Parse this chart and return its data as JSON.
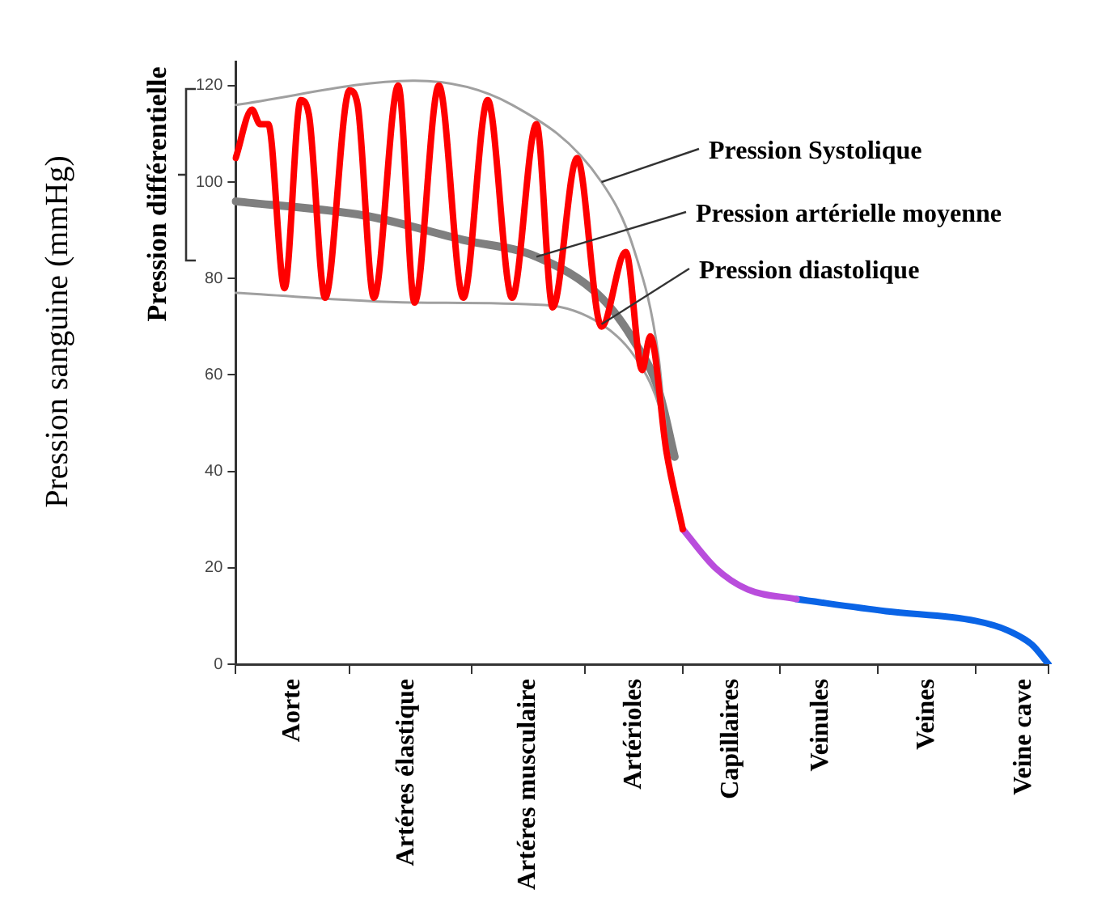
{
  "chart_data": {
    "type": "line",
    "ylabel": "Pression sanguine (mmHg)",
    "annotations": [
      "Pression différentielle"
    ],
    "categories": [
      null,
      null,
      null,
      null,
      null,
      null,
      null,
      "Aorte",
      null,
      null,
      null,
      null,
      null,
      null,
      null,
      null,
      null,
      null,
      null,
      null,
      null,
      "Artéres élastique",
      null,
      null,
      null,
      null,
      null,
      null,
      null,
      null,
      null,
      null,
      null,
      null,
      null,
      null,
      "Artéres musculaire",
      null,
      null,
      null,
      null,
      null,
      null,
      null,
      null,
      null,
      null,
      null,
      null,
      "Artérioles",
      null,
      null,
      null,
      null,
      null,
      null,
      null,
      null,
      null,
      null,
      null,
      "Capillaires",
      null,
      null,
      null,
      null,
      null,
      null,
      null,
      null,
      null,
      null,
      "Veinules",
      null,
      null,
      null,
      null,
      null,
      null,
      null,
      null,
      null,
      null,
      null,
      null,
      "Veines",
      null,
      null,
      null,
      null,
      null,
      null,
      null,
      null,
      null,
      null,
      null,
      "Veine cave",
      null,
      null,
      null
    ],
    "ylim": [
      0,
      125
    ],
    "yticks": [
      0,
      20,
      40,
      60,
      80,
      100,
      120
    ],
    "legend": false,
    "marker": "none",
    "series": [
      {
        "name": "Pression Systolique",
        "color": "#a0a0a0",
        "values": [
          116,
          null,
          null,
          null,
          null,
          null,
          null,
          null,
          null,
          null,
          null,
          null,
          null,
          null,
          null,
          null,
          null,
          null,
          null,
          null,
          null,
          null,
          121,
          null,
          null,
          null,
          null,
          null,
          null,
          null,
          null,
          null,
          null,
          null,
          116,
          null,
          null,
          null,
          null,
          null,
          null,
          null,
          null,
          null,
          null,
          100,
          null,
          null,
          null,
          86,
          null,
          null,
          64,
          47,
          null,
          null,
          null,
          null,
          null,
          null,
          null,
          null,
          null,
          null,
          null,
          null,
          null,
          null,
          null,
          null,
          null,
          null,
          null,
          null,
          null,
          null,
          null,
          null,
          null,
          null,
          null,
          null,
          null,
          null,
          null,
          null,
          null,
          null,
          null,
          null,
          null,
          null,
          null,
          null,
          null,
          null,
          null,
          null,
          null,
          null,
          null
        ]
      },
      {
        "name": "Pression artérielle moyenne",
        "color": "#7f7f7f",
        "values": [
          96,
          null,
          null,
          null,
          null,
          null,
          null,
          null,
          null,
          null,
          null,
          null,
          null,
          null,
          null,
          null,
          93,
          null,
          null,
          null,
          null,
          null,
          null,
          null,
          null,
          null,
          null,
          null,
          88,
          null,
          null,
          null,
          null,
          null,
          null,
          null,
          null,
          84.5,
          null,
          null,
          null,
          null,
          null,
          null,
          null,
          76,
          null,
          null,
          null,
          67,
          null,
          null,
          57,
          null,
          43,
          null,
          null,
          null,
          null,
          null,
          null,
          null,
          null,
          null,
          null,
          null,
          null,
          null,
          null,
          null,
          null,
          null,
          null,
          null,
          null,
          null,
          null,
          null,
          null,
          null,
          null,
          null,
          null,
          null,
          null,
          null,
          null,
          null,
          null,
          null,
          null,
          null,
          null,
          null,
          null,
          null,
          null,
          null,
          null,
          null,
          null
        ]
      },
      {
        "name": "Pression diastolique",
        "color": "#a0a0a0",
        "values": [
          77,
          null,
          null,
          null,
          null,
          null,
          null,
          null,
          null,
          null,
          null,
          null,
          null,
          null,
          null,
          null,
          null,
          null,
          null,
          null,
          null,
          null,
          75,
          null,
          null,
          null,
          null,
          null,
          null,
          null,
          null,
          null,
          null,
          null,
          null,
          null,
          null,
          null,
          74.5,
          null,
          null,
          null,
          null,
          null,
          null,
          70.5,
          null,
          null,
          null,
          64,
          null,
          null,
          54,
          47,
          null,
          null,
          null,
          null,
          null,
          null,
          null,
          null,
          null,
          null,
          null,
          null,
          null,
          null,
          null,
          null,
          null,
          null,
          null,
          null,
          null,
          null,
          null,
          null,
          null,
          null,
          null,
          null,
          null,
          null,
          null,
          null,
          null,
          null,
          null,
          null,
          null,
          null,
          null,
          null,
          null,
          null,
          null,
          null,
          null,
          null,
          null
        ]
      },
      {
        "color": "#ff0000",
        "values": [
          105,
          null,
          115,
          112,
          112,
          null,
          78,
          null,
          117,
          114,
          null,
          76,
          null,
          null,
          119,
          116,
          null,
          76,
          null,
          null,
          120,
          null,
          75,
          null,
          null,
          120,
          null,
          null,
          76,
          null,
          null,
          117,
          null,
          null,
          76,
          null,
          null,
          112,
          null,
          74,
          null,
          null,
          105,
          null,
          null,
          70,
          null,
          null,
          85.5,
          null,
          61,
          68,
          null,
          44,
          null,
          28,
          null,
          null,
          null,
          null,
          null,
          null,
          null,
          null,
          null,
          null,
          null,
          null,
          null,
          null,
          null,
          null,
          null,
          null,
          null,
          null,
          null,
          null,
          null,
          null,
          null,
          null,
          null,
          null,
          null,
          null,
          null,
          null,
          null,
          null,
          null,
          null,
          null,
          null,
          null,
          null,
          null,
          null,
          null,
          null,
          null
        ]
      },
      {
        "color": "#b94ddc",
        "values": [
          null,
          null,
          null,
          null,
          null,
          null,
          null,
          null,
          null,
          null,
          null,
          null,
          null,
          null,
          null,
          null,
          null,
          null,
          null,
          null,
          null,
          null,
          null,
          null,
          null,
          null,
          null,
          null,
          null,
          null,
          null,
          null,
          null,
          null,
          null,
          null,
          null,
          null,
          null,
          null,
          null,
          null,
          null,
          null,
          null,
          null,
          null,
          null,
          null,
          null,
          null,
          null,
          null,
          null,
          null,
          28,
          null,
          null,
          null,
          20,
          null,
          null,
          null,
          15.5,
          null,
          null,
          null,
          null,
          null,
          13.5,
          null,
          null,
          null,
          null,
          null,
          null,
          null,
          null,
          null,
          null,
          null,
          null,
          null,
          null,
          null,
          null,
          null,
          null,
          null,
          null,
          null,
          null,
          null,
          null,
          null,
          null,
          null,
          null,
          null,
          null,
          null
        ]
      },
      {
        "color": "#0a64e6",
        "values": [
          null,
          null,
          null,
          null,
          null,
          null,
          null,
          null,
          null,
          null,
          null,
          null,
          null,
          null,
          null,
          null,
          null,
          null,
          null,
          null,
          null,
          null,
          null,
          null,
          null,
          null,
          null,
          null,
          null,
          null,
          null,
          null,
          null,
          null,
          null,
          null,
          null,
          null,
          null,
          null,
          null,
          null,
          null,
          null,
          null,
          null,
          null,
          null,
          null,
          null,
          null,
          null,
          null,
          null,
          null,
          null,
          null,
          null,
          null,
          null,
          null,
          null,
          null,
          null,
          null,
          null,
          null,
          null,
          null,
          13.5,
          null,
          null,
          null,
          null,
          null,
          null,
          null,
          null,
          null,
          null,
          11,
          null,
          null,
          null,
          null,
          null,
          null,
          null,
          null,
          null,
          null,
          9,
          null,
          null,
          null,
          7,
          null,
          null,
          4,
          null,
          0
        ]
      }
    ]
  }
}
